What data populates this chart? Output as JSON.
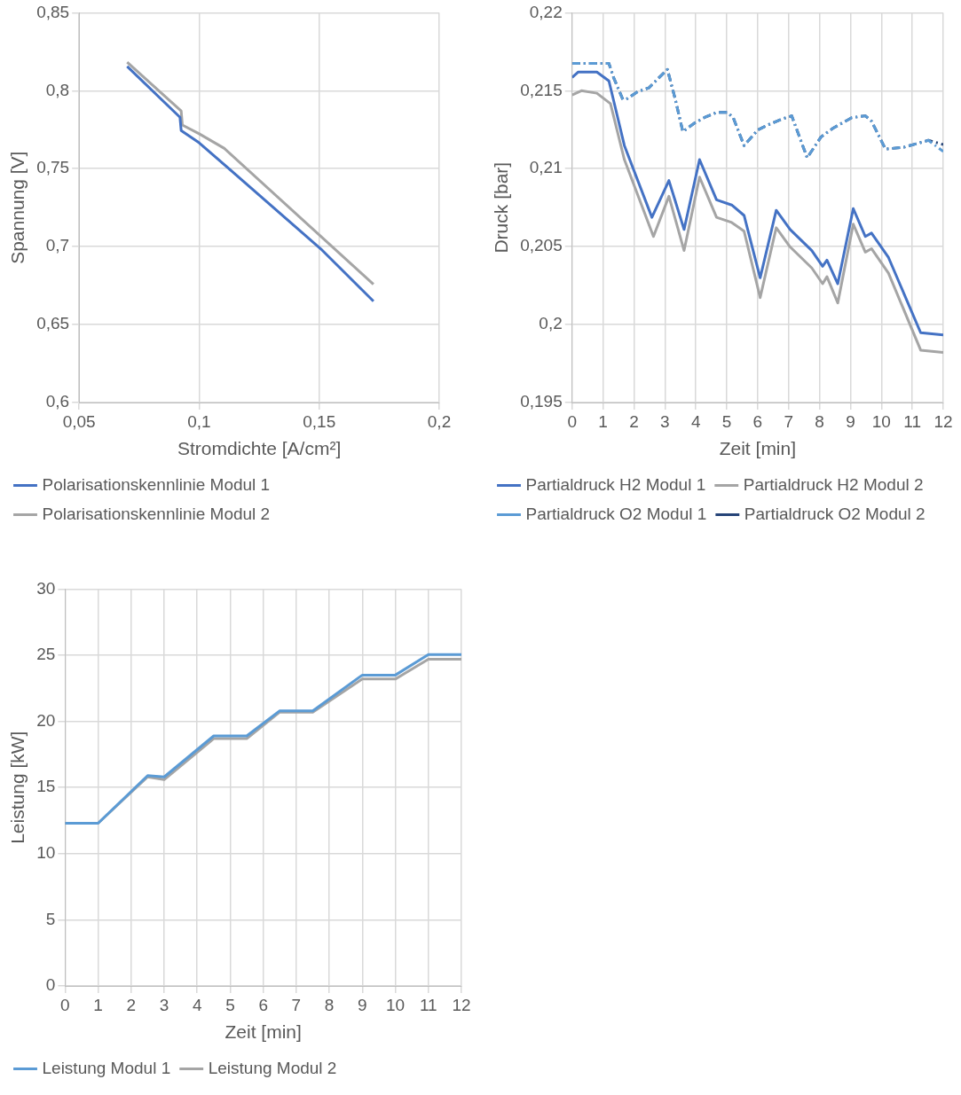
{
  "chart_data": [
    {
      "type": "line",
      "xlabel": "Stromdichte [A/cm²]",
      "ylabel": "Spannung [V]",
      "xlim": [
        0.05,
        0.2
      ],
      "ylim": [
        0.6,
        0.85
      ],
      "xticks": [
        {
          "value": 0.05,
          "label": "0,05"
        },
        {
          "value": 0.1,
          "label": "0,1"
        },
        {
          "value": 0.15,
          "label": "0,15"
        },
        {
          "value": 0.2,
          "label": "0,2"
        }
      ],
      "yticks": [
        {
          "value": 0.6,
          "label": "0,6"
        },
        {
          "value": 0.65,
          "label": "0,65"
        },
        {
          "value": 0.7,
          "label": "0,7"
        },
        {
          "value": 0.75,
          "label": "0,75"
        },
        {
          "value": 0.8,
          "label": "0,8"
        },
        {
          "value": 0.85,
          "label": "0,85"
        }
      ],
      "grid": true,
      "legend": "bottom",
      "line_style": "solid",
      "series": [
        {
          "name": "Polarisationskennlinie Modul 1",
          "color": "#4472c4",
          "x": [
            0.07,
            0.092,
            0.0925,
            0.1,
            0.1507,
            0.1726
          ],
          "values": [
            0.8156,
            0.783,
            0.7745,
            0.7666,
            0.6985,
            0.665
          ]
        },
        {
          "name": "Polarisationskennlinie Modul 2",
          "color": "#a5a5a5",
          "x": [
            0.07,
            0.0925,
            0.093,
            0.1,
            0.1105,
            0.1726
          ],
          "values": [
            0.8183,
            0.787,
            0.778,
            0.7724,
            0.763,
            0.6758
          ]
        }
      ]
    },
    {
      "type": "line",
      "xlabel": "Zeit [min]",
      "ylabel": "Druck [bar]",
      "xlim": [
        0,
        12
      ],
      "ylim": [
        0.195,
        0.22
      ],
      "xticks": [
        0,
        1,
        2,
        3,
        4,
        5,
        6,
        7,
        8,
        9,
        10,
        11,
        12
      ],
      "yticks": [
        {
          "value": 0.195,
          "label": "0,195"
        },
        {
          "value": 0.2,
          "label": "0,2"
        },
        {
          "value": 0.205,
          "label": "0,205"
        },
        {
          "value": 0.21,
          "label": "0,21"
        },
        {
          "value": 0.215,
          "label": "0,215"
        },
        {
          "value": 0.22,
          "label": "0,22"
        }
      ],
      "grid": true,
      "legend": "bottom",
      "series": [
        {
          "name": "Partialdruck H2 Modul 1",
          "color": "#4472c4",
          "line_style": "solid",
          "x": [
            0,
            0.2,
            0.8,
            1.19,
            1.69,
            2.58,
            3.13,
            3.62,
            4.12,
            4.67,
            5.16,
            5.56,
            6.08,
            6.6,
            7.05,
            7.75,
            8.1,
            8.24,
            8.59,
            9.09,
            9.48,
            9.68,
            10.23,
            11.27,
            12
          ],
          "values": [
            0.21585,
            0.2162,
            0.2162,
            0.21563,
            0.21148,
            0.20688,
            0.20924,
            0.2061,
            0.21058,
            0.208,
            0.20767,
            0.207,
            0.203,
            0.20733,
            0.2061,
            0.20475,
            0.20374,
            0.20413,
            0.20262,
            0.20744,
            0.20565,
            0.20587,
            0.2043,
            0.19948,
            0.19933
          ]
        },
        {
          "name": "Partialdruck H2 Modul 2",
          "color": "#a5a5a5",
          "line_style": "solid",
          "x": [
            0,
            0.3,
            0.8,
            1.24,
            1.69,
            2.63,
            3.13,
            3.62,
            4.12,
            4.67,
            5.16,
            5.56,
            6.08,
            6.6,
            7.05,
            7.75,
            8.1,
            8.24,
            8.59,
            9.09,
            9.48,
            9.68,
            10.23,
            11.27,
            12
          ],
          "values": [
            0.21473,
            0.215,
            0.21484,
            0.21417,
            0.21058,
            0.20565,
            0.20823,
            0.20475,
            0.20946,
            0.20688,
            0.20655,
            0.20599,
            0.20173,
            0.20621,
            0.20498,
            0.20363,
            0.20262,
            0.20307,
            0.20139,
            0.20644,
            0.20465,
            0.20487,
            0.2033,
            0.19836,
            0.19821
          ]
        },
        {
          "name": "Partialdruck O2 Modul 1",
          "color": "#5b9bd5",
          "line_style": "dashed",
          "x": [
            0,
            1.19,
            1.34,
            1.64,
            1.79,
            2.14,
            2.48,
            3.08,
            3.33,
            3.58,
            3.97,
            4.27,
            4.67,
            5.02,
            5.21,
            5.56,
            6.01,
            6.36,
            6.75,
            7.1,
            7.6,
            8.05,
            8.44,
            9.04,
            9.48,
            9.68,
            10.13,
            10.72,
            11.52,
            12
          ],
          "values": [
            0.21675,
            0.21675,
            0.21585,
            0.21444,
            0.2145,
            0.21496,
            0.21518,
            0.21637,
            0.2145,
            0.21238,
            0.21294,
            0.21327,
            0.21361,
            0.21361,
            0.21327,
            0.21148,
            0.21249,
            0.21283,
            0.21316,
            0.21339,
            0.2107,
            0.21204,
            0.2126,
            0.21327,
            0.21339,
            0.21305,
            0.21126,
            0.21137,
            0.21182,
            0.2111
          ]
        },
        {
          "name": "Partialdruck O2 Modul 2",
          "color": "#264478",
          "line_style": "dashed",
          "x": [
            0,
            1.19,
            1.34,
            1.64,
            1.79,
            2.14,
            2.48,
            3.08,
            3.33,
            3.58,
            3.97,
            4.27,
            4.67,
            5.02,
            5.21,
            5.56,
            6.01,
            6.36,
            6.75,
            7.1,
            7.6,
            8.05,
            8.44,
            9.04,
            9.48,
            9.68,
            10.13,
            10.72,
            11.52,
            12
          ],
          "values": [
            0.21675,
            0.21675,
            0.21585,
            0.21444,
            0.2145,
            0.21496,
            0.21518,
            0.21637,
            0.2145,
            0.21238,
            0.21294,
            0.21327,
            0.21361,
            0.21361,
            0.21327,
            0.21148,
            0.21249,
            0.21283,
            0.21316,
            0.21339,
            0.2107,
            0.21204,
            0.2126,
            0.21327,
            0.21339,
            0.21305,
            0.21126,
            0.21137,
            0.21182,
            0.21155
          ]
        }
      ]
    },
    {
      "type": "line",
      "xlabel": "Zeit [min]",
      "ylabel": "Leistung [kW]",
      "xlim": [
        0,
        12
      ],
      "ylim": [
        0,
        30
      ],
      "xticks": [
        0,
        1,
        2,
        3,
        4,
        5,
        6,
        7,
        8,
        9,
        10,
        11,
        12
      ],
      "yticks": [
        0,
        5,
        10,
        15,
        20,
        25,
        30
      ],
      "grid": true,
      "legend": "bottom",
      "line_style": "solid",
      "series": [
        {
          "name": "Leistung Modul 1",
          "color": "#5b9bd5",
          "x": [
            0,
            1,
            2.5,
            3,
            4.5,
            5.5,
            6.5,
            7.5,
            9,
            10,
            11,
            12
          ],
          "values": [
            12.3,
            12.3,
            15.9,
            15.8,
            18.9,
            18.9,
            20.8,
            20.8,
            23.5,
            23.5,
            25.05,
            25.05
          ]
        },
        {
          "name": "Leistung Modul 2",
          "color": "#a5a5a5",
          "x": [
            0,
            1,
            2.5,
            3,
            4.5,
            5.5,
            6.5,
            7.5,
            9,
            10,
            11,
            12
          ],
          "values": [
            12.3,
            12.3,
            15.8,
            15.6,
            18.7,
            18.7,
            20.7,
            20.7,
            23.2,
            23.2,
            24.7,
            24.7
          ]
        }
      ]
    }
  ]
}
